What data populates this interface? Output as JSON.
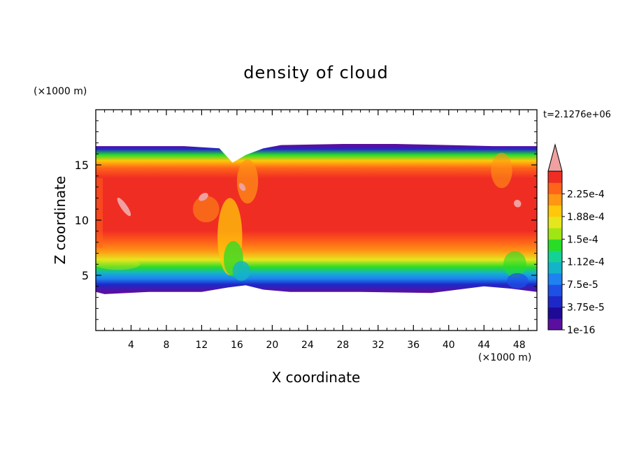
{
  "chart_data": {
    "type": "heatmap",
    "title": "density of cloud",
    "xlabel": "X coordinate",
    "ylabel": "Z coordinate",
    "x_unit": "(×1000 m)",
    "y_unit": "(×1000 m)",
    "time_label": "t=2.1276e+06",
    "xlim": [
      0,
      50
    ],
    "ylim": [
      0,
      20
    ],
    "x_ticks": [
      "4",
      "8",
      "12",
      "16",
      "20",
      "24",
      "28",
      "32",
      "36",
      "40",
      "44",
      "48"
    ],
    "x_tick_values": [
      4,
      8,
      12,
      16,
      20,
      24,
      28,
      32,
      36,
      40,
      44,
      48
    ],
    "y_ticks": [
      "5",
      "10",
      "15"
    ],
    "y_tick_values": [
      5,
      10,
      15
    ],
    "cloud_layer": {
      "z_bottom": 3.5,
      "z_top": 16.7,
      "core_bottom": 8.5,
      "core_top": 15.0
    },
    "colorbar": {
      "labels": [
        "1e-16",
        "3.75e-5",
        "7.5e-5",
        "1.12e-4",
        "1.5e-4",
        "1.88e-4",
        "2.25e-4"
      ],
      "levels": 14,
      "colors": [
        "#5a0fa0",
        "#1e0a96",
        "#1e28c8",
        "#1e50e6",
        "#1e82f0",
        "#14b4c8",
        "#14d296",
        "#28dc28",
        "#a0e614",
        "#e6e61e",
        "#ffc80a",
        "#ff9614",
        "#ff6419",
        "#f02d23"
      ],
      "overflow_color": "#f0a0a0",
      "max_label": "2.25e-4"
    }
  }
}
